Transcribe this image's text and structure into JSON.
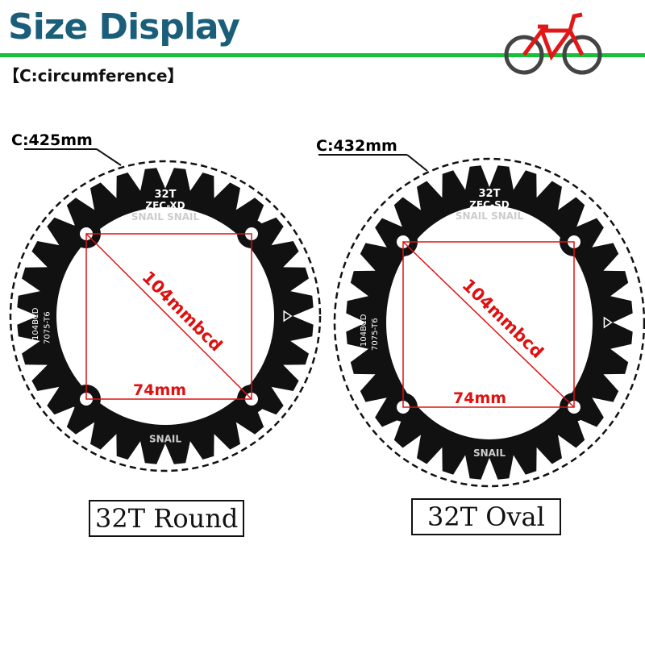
{
  "header": {
    "title": "Size Display",
    "subtitle": "【C:circumference】"
  },
  "accent_colors": {
    "title": "#1b5e7a",
    "rule": "#16c03a",
    "measure": "#e01010"
  },
  "chainrings": [
    {
      "circumference": "C:425mm",
      "diagonal": "104mmbcd",
      "side": "74mm",
      "caption": "32T Round",
      "marks": {
        "teeth": "32T",
        "model": "ZFC-XD",
        "bcd": "104BCD",
        "material": "7075-T6",
        "brand": "SNAIL"
      }
    },
    {
      "circumference": "C:432mm",
      "diagonal": "104mmbcd",
      "side": "74mm",
      "caption": "32T Oval",
      "marks": {
        "teeth": "32T",
        "model": "ZFC-SD",
        "bcd": "104BCD",
        "material": "7075-T6",
        "brand": "SNAIL"
      }
    }
  ]
}
